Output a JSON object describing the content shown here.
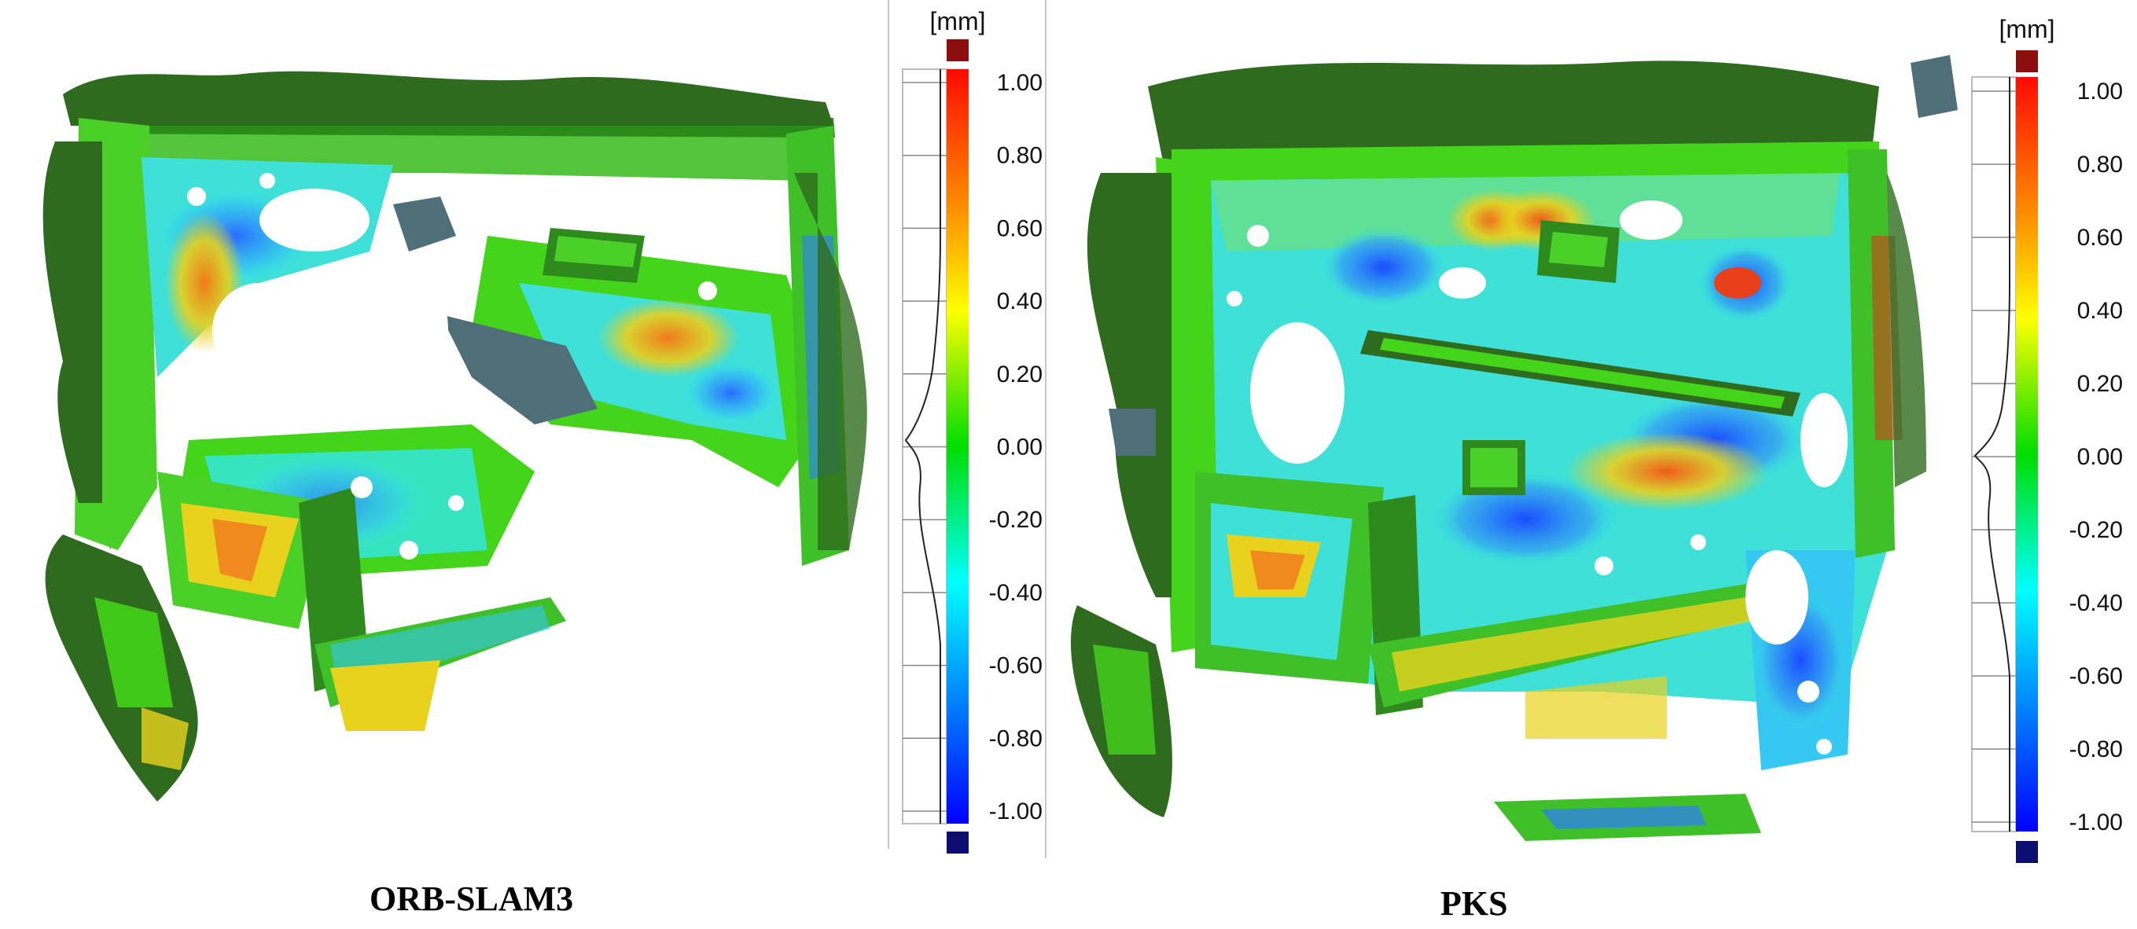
{
  "panels": [
    {
      "caption": "ORB-SLAM3",
      "colorbar": {
        "unit": "[mm]",
        "ticks": [
          "1.00",
          "0.80",
          "0.60",
          "0.40",
          "0.20",
          "0.00",
          "-0.20",
          "-0.40",
          "-0.60",
          "-0.80",
          "-1.00"
        ]
      }
    },
    {
      "caption": "PKS",
      "colorbar": {
        "unit": "[mm]",
        "ticks": [
          "1.00",
          "0.80",
          "0.60",
          "0.40",
          "0.20",
          "0.00",
          "-0.20",
          "-0.40",
          "-0.60",
          "-0.80",
          "-1.00"
        ]
      }
    }
  ],
  "colors": {
    "over_range": "#8b0d0d",
    "under_range": "#0d0d70",
    "scale_top": "#ff1a00",
    "scale_mid": "#00dd00",
    "scale_bottom": "#0000ff",
    "mesh_dark_green": "#2f6b1e",
    "mesh_green": "#44d41a",
    "mesh_cyan": "#35e6e0",
    "mesh_blue": "#2d7cff",
    "mesh_yellow": "#e8d21e",
    "mesh_orange": "#f08a1c",
    "mesh_gray": "#4f6f78"
  }
}
